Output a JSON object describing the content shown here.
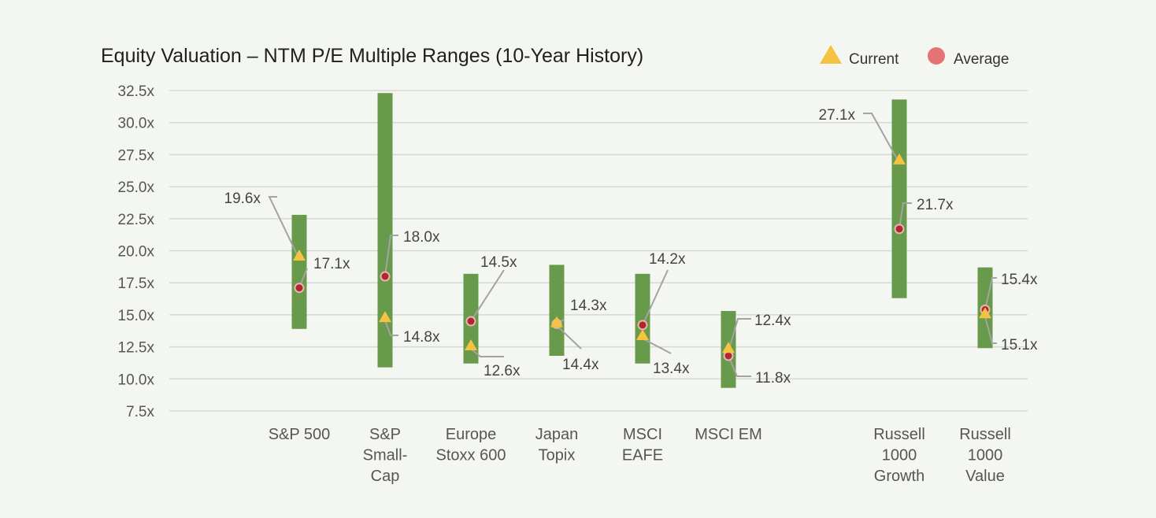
{
  "chart_data": {
    "type": "range",
    "title": "Equity Valuation – NTM P/E Multiple Ranges (10-Year History)",
    "xlabel": "",
    "ylabel": "",
    "ylim": [
      7.5,
      32.5
    ],
    "yticks": [
      7.5,
      10.0,
      12.5,
      15.0,
      17.5,
      20.0,
      22.5,
      25.0,
      27.5,
      30.0,
      32.5
    ],
    "ytick_labels": [
      "7.5x",
      "10.0x",
      "12.5x",
      "15.0x",
      "17.5x",
      "20.0x",
      "22.5x",
      "25.0x",
      "27.5x",
      "30.0x",
      "32.5x"
    ],
    "grid": true,
    "legend_position": "top-right",
    "legend": [
      {
        "name": "Current",
        "marker": "triangle",
        "color": "#f5c242"
      },
      {
        "name": "Average",
        "marker": "circle",
        "color": "#e57373"
      }
    ],
    "colors": {
      "range_bar": "#679b4b",
      "current": "#f5c242",
      "average": "#b0282e",
      "average_outline": "#e8b4b4"
    },
    "categories": [
      {
        "lines": [
          "S&P 500"
        ],
        "low": 13.9,
        "high": 22.8,
        "current": 19.6,
        "average": 17.1,
        "current_label": "19.6x",
        "average_label": "17.1x"
      },
      {
        "lines": [
          "S&P",
          "Small-",
          "Cap"
        ],
        "low": 10.9,
        "high": 32.3,
        "current": 14.8,
        "average": 18.0,
        "current_label": "14.8x",
        "average_label": "18.0x"
      },
      {
        "lines": [
          "Europe",
          "Stoxx 600"
        ],
        "low": 11.2,
        "high": 18.2,
        "current": 12.6,
        "average": 14.5,
        "current_label": "12.6x",
        "average_label": "14.5x"
      },
      {
        "lines": [
          "Japan",
          "Topix"
        ],
        "low": 11.8,
        "high": 18.9,
        "current": 14.4,
        "average": 14.3,
        "current_label": "14.4x",
        "average_label": "14.3x"
      },
      {
        "lines": [
          "MSCI",
          "EAFE"
        ],
        "low": 11.2,
        "high": 18.2,
        "current": 13.4,
        "average": 14.2,
        "current_label": "13.4x",
        "average_label": "14.2x"
      },
      {
        "lines": [
          "MSCI EM"
        ],
        "low": 9.3,
        "high": 15.3,
        "current": 12.4,
        "average": 11.8,
        "current_label": "12.4x",
        "average_label": "11.8x"
      },
      {
        "lines": [
          "Russell",
          "1000",
          "Growth"
        ],
        "low": 16.3,
        "high": 31.8,
        "current": 27.1,
        "average": 21.7,
        "current_label": "27.1x",
        "average_label": "21.7x"
      },
      {
        "lines": [
          "Russell",
          "1000",
          "Value"
        ],
        "low": 12.4,
        "high": 18.7,
        "current": 15.1,
        "average": 15.4,
        "current_label": "15.1x",
        "average_label": "15.4x"
      }
    ]
  }
}
